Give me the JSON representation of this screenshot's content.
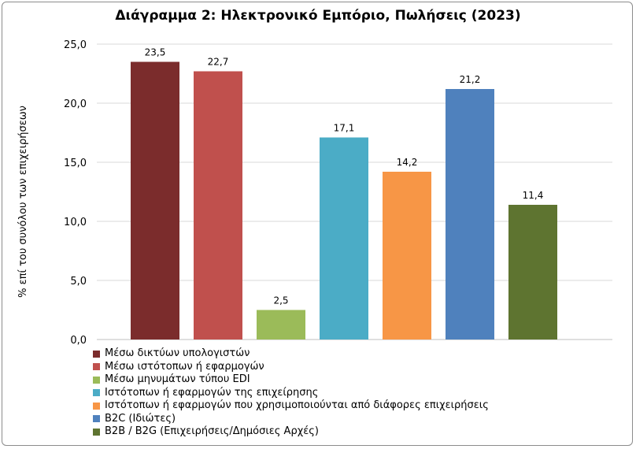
{
  "chart_data": {
    "type": "bar",
    "title": "Διάγραμμα 2: Ηλεκτρονικό Εμπόριο, Πωλήσεις (2023)",
    "ylabel": "% επί του συνόλου των επιχειρήσεων",
    "xlabel": "",
    "ylim": [
      0,
      25
    ],
    "yticks": [
      "0,0",
      "5,0",
      "10,0",
      "15,0",
      "20,0",
      "25,0"
    ],
    "grid": true,
    "legend_position": "bottom",
    "categories": [
      "Μέσω δικτύων υπολογιστών",
      "Μέσω ιστότοπων ή εφαρμογών",
      "Μέσω μηνυμάτων τύπου EDI",
      "Ιστότοπων ή εφαρμογών της επιχείρησης",
      "Ιστότοπων ή εφαρμογών που χρησιμοποιούνται από διάφορες επιχειρήσεις",
      "B2C (Ιδιώτες)",
      "B2B / B2G (Επιχειρήσεις/Δημόσιες Αρχές)"
    ],
    "values": [
      23.5,
      22.7,
      2.5,
      17.1,
      14.2,
      21.2,
      11.4
    ],
    "value_labels": [
      "23,5",
      "22,7",
      "2,5",
      "17,1",
      "14,2",
      "21,2",
      "11,4"
    ],
    "colors": [
      "#7b2c2c",
      "#c0504d",
      "#9bbb59",
      "#4bacc6",
      "#f79646",
      "#4f81bd",
      "#5e7430"
    ]
  }
}
